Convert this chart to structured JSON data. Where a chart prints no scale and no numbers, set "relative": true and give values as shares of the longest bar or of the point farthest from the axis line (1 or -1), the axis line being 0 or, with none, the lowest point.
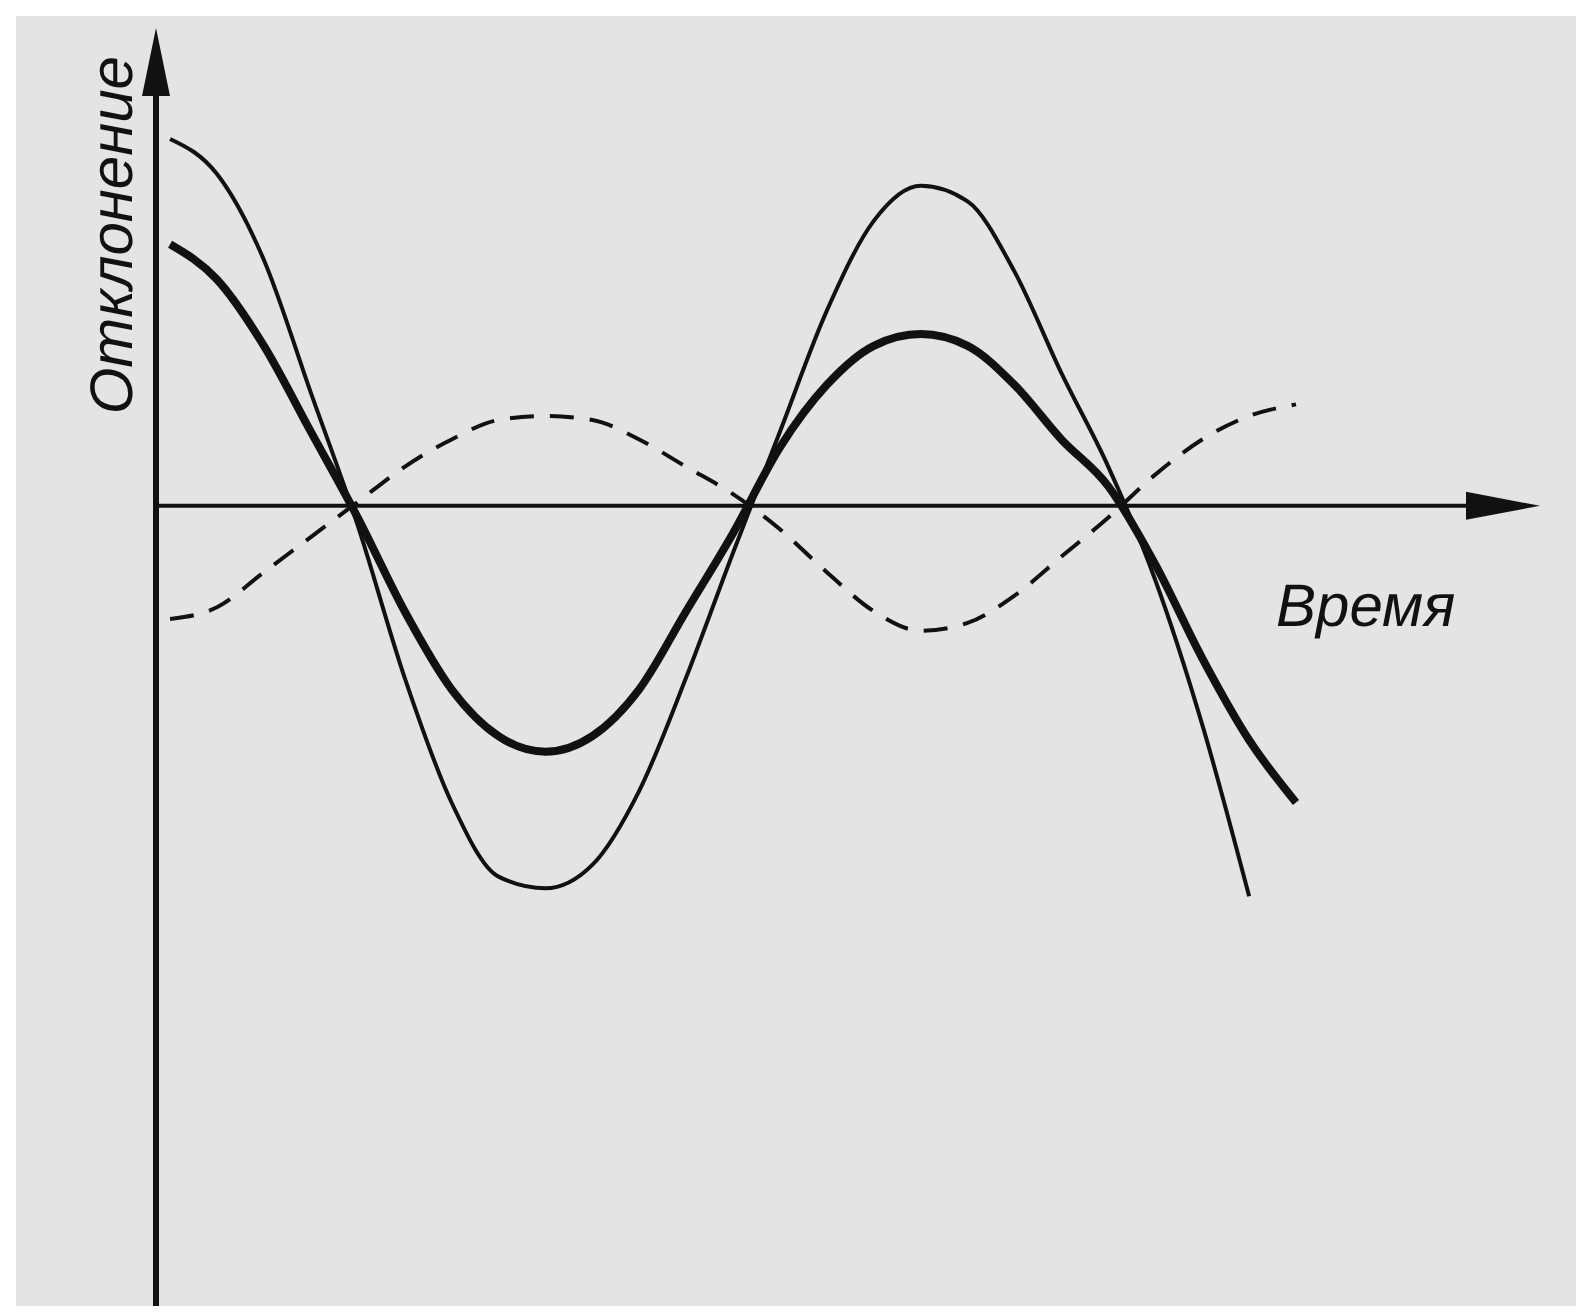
{
  "chart_data": {
    "type": "line",
    "relative": true,
    "xlabel": "Время",
    "ylabel": "Отклонение",
    "marker": "none",
    "grid": false,
    "legend": false,
    "categories": [
      null,
      null,
      null,
      null,
      null,
      null,
      null,
      null,
      null,
      null,
      null,
      null,
      null,
      null,
      null,
      null,
      null,
      null,
      null,
      null,
      null,
      null,
      null,
      null,
      null
    ],
    "series": [
      {
        "color": "#111111",
        "line_style": "solid",
        "values": [
          0.94,
          0.85,
          0.63,
          0.29,
          -0.05,
          -0.44,
          -0.76,
          -0.95,
          -0.98,
          -0.92,
          -0.73,
          -0.44,
          -0.12,
          0.19,
          0.5,
          0.73,
          0.82,
          0.78,
          0.6,
          0.34,
          0.1,
          -0.19,
          -0.56,
          -1,
          null
        ]
      },
      {
        "color": "#111111",
        "line_style": "solid",
        "values": [
          0.67,
          0.58,
          0.41,
          0.19,
          -0.03,
          -0.27,
          -0.47,
          -0.59,
          -0.63,
          -0.59,
          -0.47,
          -0.27,
          -0.07,
          0.15,
          0.31,
          0.41,
          0.44,
          0.41,
          0.31,
          0.17,
          0.05,
          -0.15,
          -0.39,
          -0.6,
          -0.76
        ]
      },
      {
        "color": "#111111",
        "line_style": "dashed",
        "values": [
          -0.29,
          -0.26,
          -0.17,
          -0.08,
          0.01,
          0.1,
          0.17,
          0.22,
          0.23,
          0.22,
          0.17,
          0.1,
          0.03,
          -0.06,
          -0.17,
          -0.27,
          -0.32,
          -0.3,
          -0.23,
          -0.13,
          -0.03,
          0.08,
          0.17,
          0.23,
          0.26
        ]
      }
    ]
  }
}
